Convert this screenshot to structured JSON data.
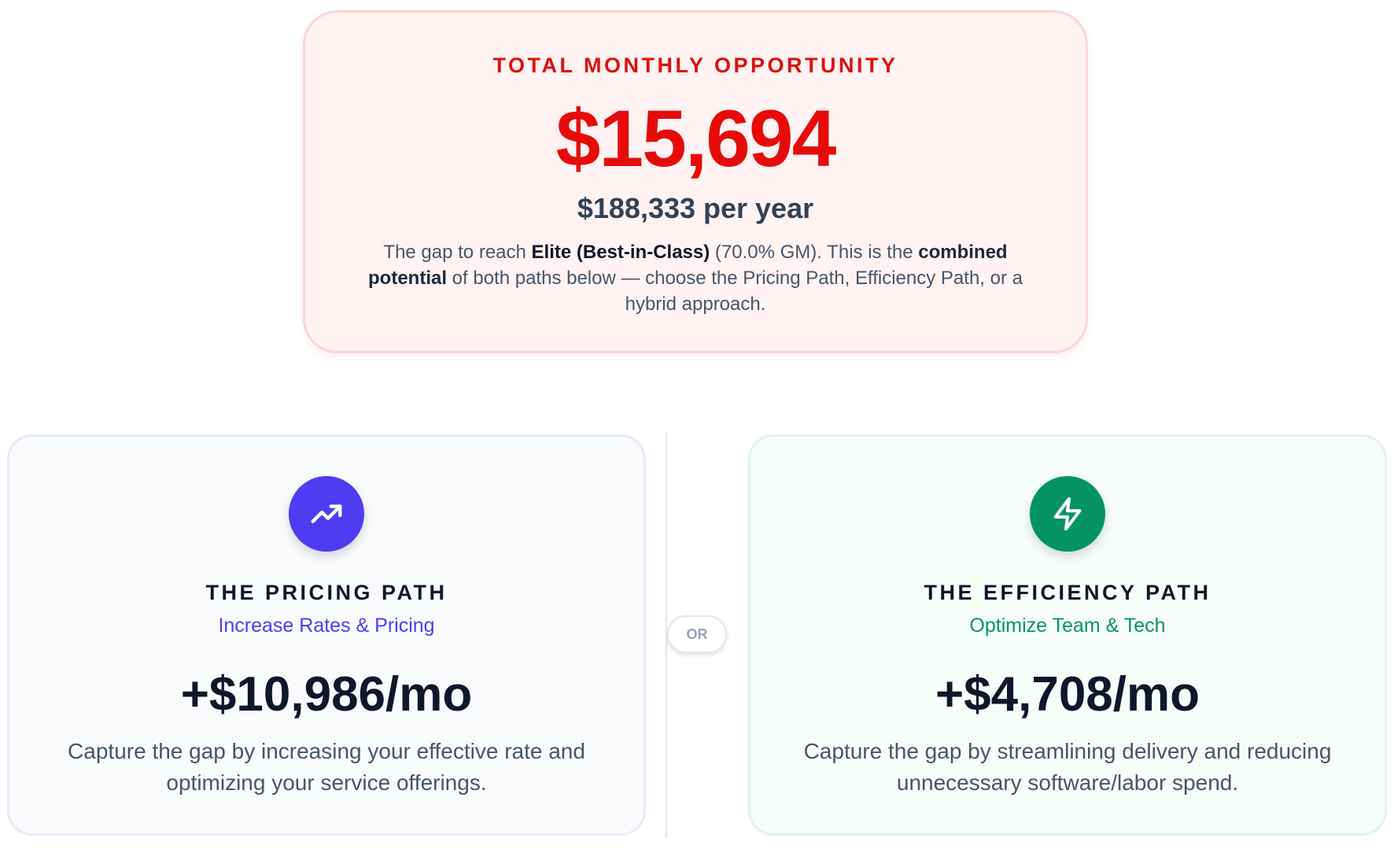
{
  "summary": {
    "eyebrow": "TOTAL MONTHLY OPPORTUNITY",
    "amount": "$15,694",
    "yearly": "$188,333 per year",
    "description": {
      "part1": "The gap to reach ",
      "tier": "Elite (Best-in-Class)",
      "part2": " (70.0% GM). This is the ",
      "emphasis": "combined potential",
      "part3": " of both paths below — choose the Pricing Path, Efficiency Path, or a hybrid approach."
    }
  },
  "divider": {
    "label": "OR"
  },
  "paths": {
    "pricing": {
      "icon": "trending-up-icon",
      "title": "THE PRICING PATH",
      "subtitle": "Increase Rates & Pricing",
      "amount": "+$10,986/mo",
      "description": "Capture the gap by increasing your effective rate and optimizing your service offerings.",
      "color": "#4f3cf2"
    },
    "efficiency": {
      "icon": "lightning-bolt-icon",
      "title": "THE EFFICIENCY PATH",
      "subtitle": "Optimize Team & Tech",
      "amount": "+$4,708/mo",
      "description": "Capture the gap by streamlining delivery and reducing unnecessary software/labor spend.",
      "color": "#059461"
    }
  },
  "colors": {
    "summary_accent": "#e60b0b",
    "summary_background": "#fef2f2",
    "text_dark": "#0f172a",
    "text_muted": "#475569"
  }
}
